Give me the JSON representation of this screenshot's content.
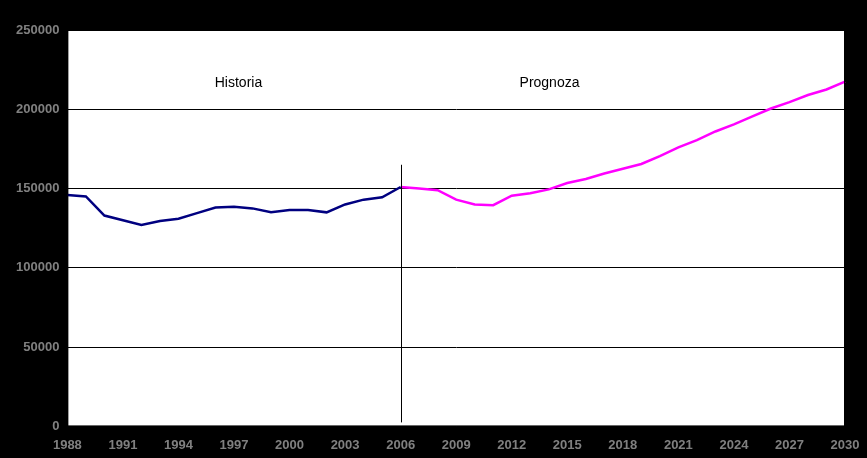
{
  "chart_data": {
    "type": "line",
    "categories": [
      "1988",
      null,
      null,
      "1991",
      null,
      null,
      "1994",
      null,
      null,
      "1997",
      null,
      null,
      "2000",
      null,
      null,
      "2003",
      null,
      null,
      "2006",
      null,
      null,
      "2009",
      null,
      null,
      "2012",
      null,
      null,
      "2015",
      null,
      null,
      "2018",
      null,
      null,
      "2021",
      null,
      null,
      "2024",
      null,
      null,
      "2027",
      null,
      null,
      "2030"
    ],
    "series": [
      {
        "color": "#000080",
        "values": [
          146000,
          145000,
          133000,
          130000,
          127000,
          129500,
          131000,
          134500,
          138000,
          138500,
          137500,
          135000,
          136500,
          136500,
          135000,
          140000,
          143000,
          144500,
          151000,
          null,
          null,
          null,
          null,
          null,
          null,
          null,
          null,
          null,
          null,
          null,
          null,
          null,
          null,
          null,
          null,
          null,
          null,
          null,
          null,
          null,
          null,
          null,
          null
        ]
      },
      {
        "color": "#ff00ff",
        "values": [
          null,
          null,
          null,
          null,
          null,
          null,
          null,
          null,
          null,
          null,
          null,
          null,
          null,
          null,
          null,
          null,
          null,
          null,
          151000,
          150000,
          149000,
          143000,
          140000,
          139500,
          145500,
          147000,
          149500,
          153500,
          156000,
          159500,
          162500,
          165500,
          170500,
          176000,
          180500,
          186000,
          190500,
          195500,
          200500,
          204500,
          209000,
          212500,
          217500
        ]
      }
    ],
    "annotations": [
      {
        "text": "Historia"
      },
      {
        "text": "Prognoza"
      }
    ],
    "divider": {
      "x": "2006",
      "ymax": 165000
    },
    "ylim": [
      0,
      250000
    ],
    "yticks": [
      0,
      50000,
      100000,
      150000,
      200000,
      250000
    ],
    "grid": true
  }
}
